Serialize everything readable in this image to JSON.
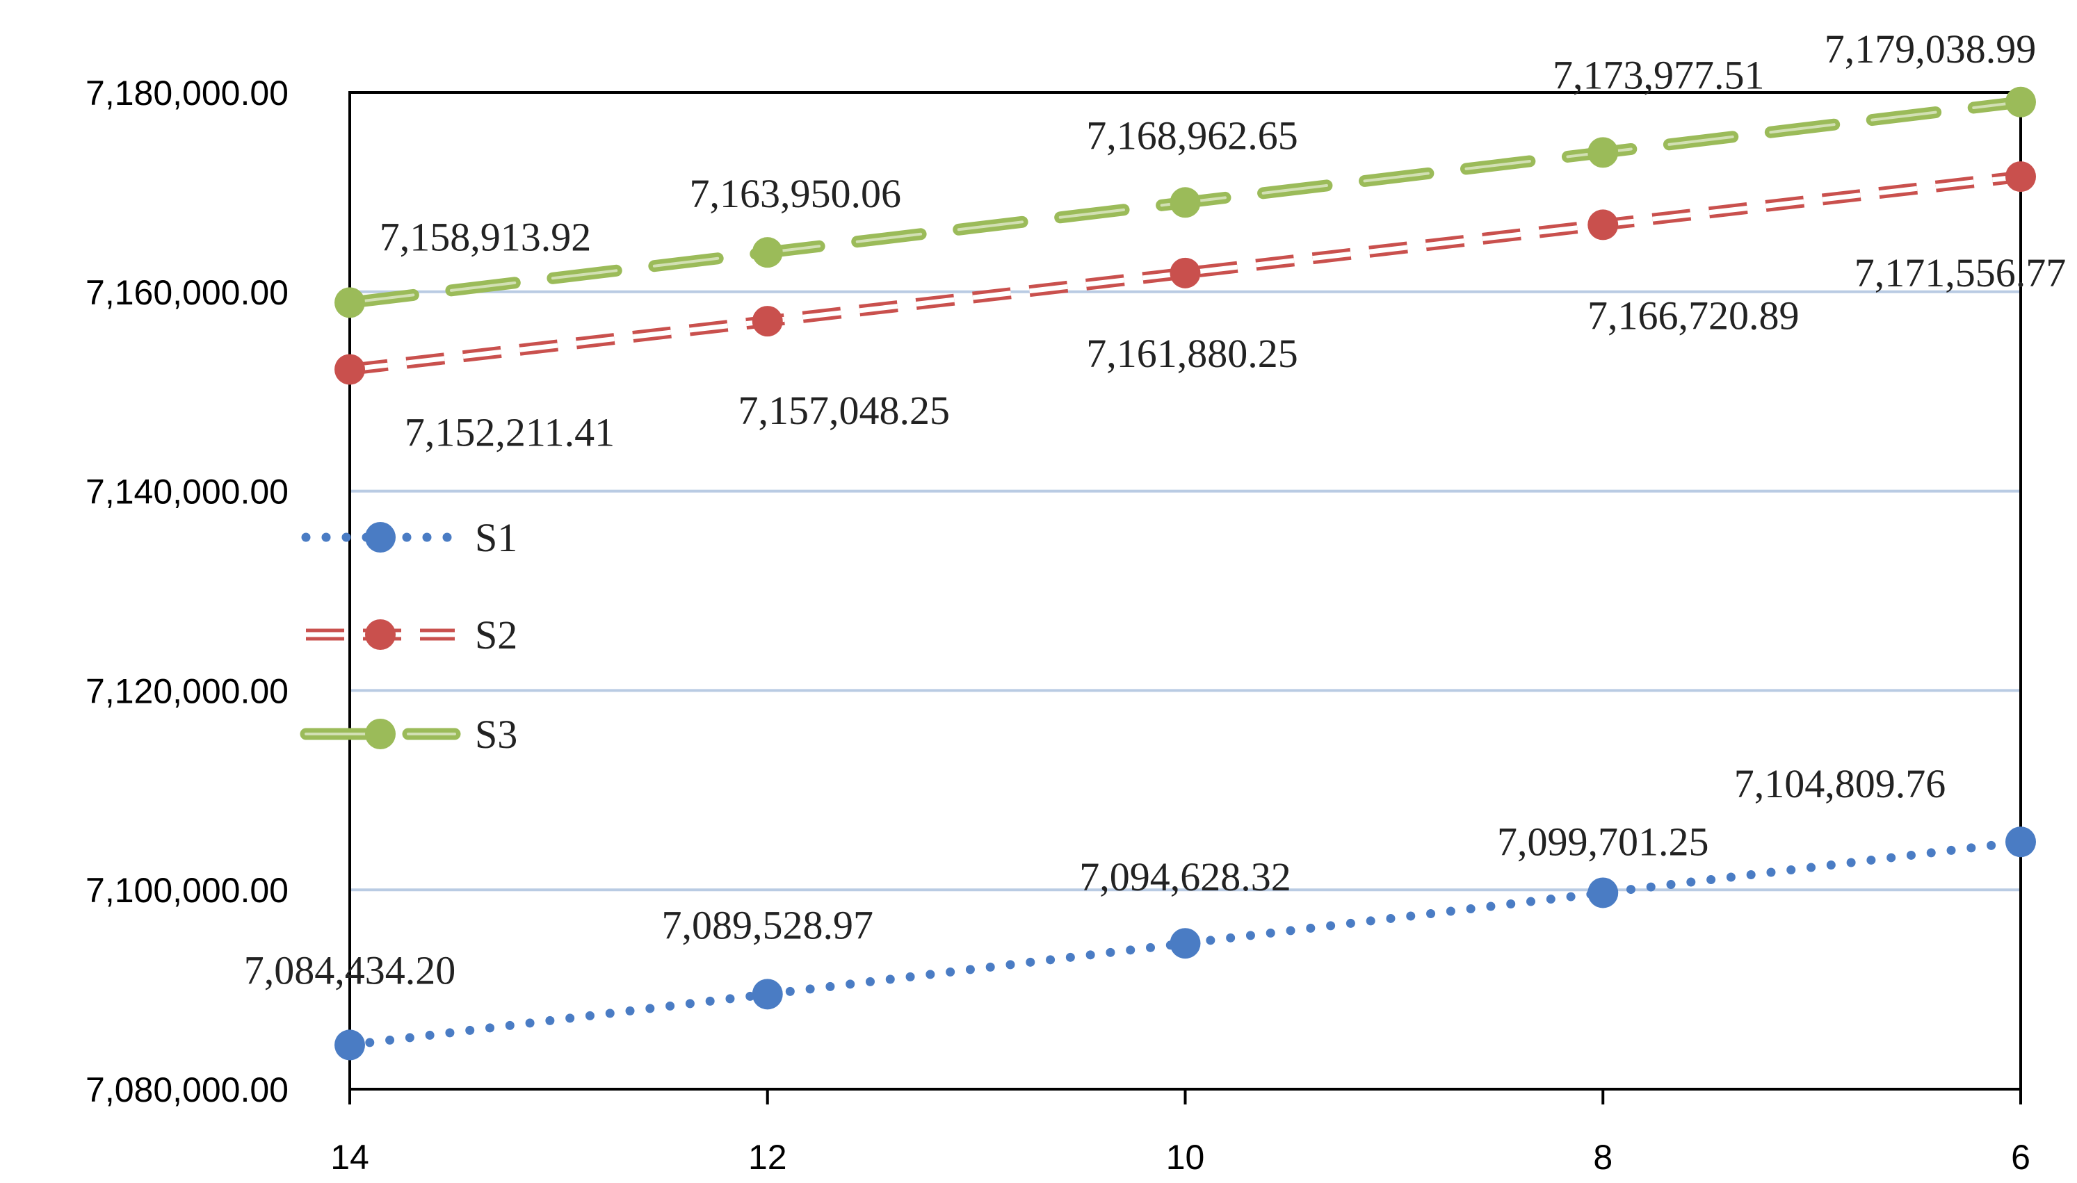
{
  "chart_data": {
    "type": "line",
    "title": "",
    "xlabel": "",
    "ylabel": "",
    "x": [
      14,
      12,
      10,
      8,
      6
    ],
    "x_tick_labels": [
      "14",
      "12",
      "10",
      "8",
      "6"
    ],
    "ylim": [
      7080000,
      7180000
    ],
    "y_tick_values": [
      7080000,
      7100000,
      7120000,
      7140000,
      7160000,
      7180000
    ],
    "y_tick_labels": [
      "7,080,000.00",
      "7,100,000.00",
      "7,120,000.00",
      "7,140,000.00",
      "7,160,000.00",
      "7,180,000.00"
    ],
    "grid": "horizontal",
    "legend_position": "left-middle",
    "series": [
      {
        "name": "S1",
        "color": "#4a7cc4",
        "line_style": "dotted",
        "values": [
          7084434.2,
          7089528.97,
          7094628.32,
          7099701.25,
          7104809.76
        ],
        "labels": [
          "7,084,434.20",
          "7,089,528.97",
          "7,094,628.32",
          "7,099,701.25",
          "7,104,809.76"
        ]
      },
      {
        "name": "S2",
        "color": "#c9504d",
        "line_style": "double-dash",
        "values": [
          7152211.41,
          7157048.25,
          7161880.25,
          7166720.89,
          7171556.77
        ],
        "labels": [
          "7,152,211.41",
          "7,157,048.25",
          "7,161,880.25",
          "7,166,720.89",
          "7,171,556.77"
        ]
      },
      {
        "name": "S3",
        "color": "#9bbb59",
        "line_style": "long-dash",
        "values": [
          7158913.92,
          7163950.06,
          7168962.65,
          7173977.51,
          7179038.99
        ],
        "labels": [
          "7,158,913.92",
          "7,163,950.06",
          "7,168,962.65",
          "7,173,977.51",
          "7,179,038.99"
        ]
      }
    ]
  }
}
